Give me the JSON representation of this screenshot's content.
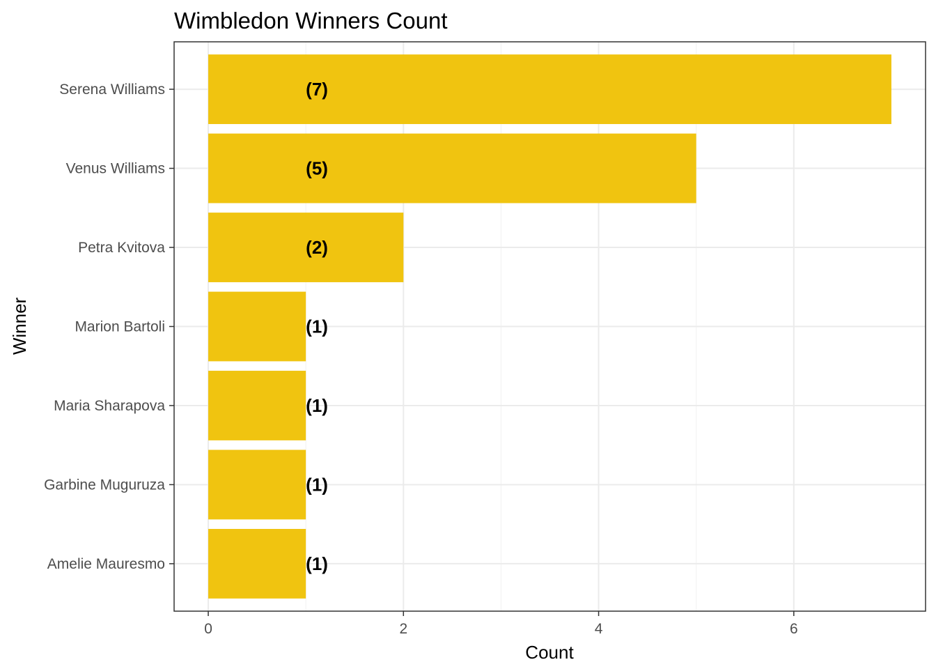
{
  "chart_data": {
    "type": "bar",
    "orientation": "horizontal",
    "title": "Wimbledon Winners Count",
    "xlabel": "Count",
    "ylabel": "Winner",
    "categories": [
      "Serena Williams",
      "Venus Williams",
      "Petra Kvitova",
      "Marion Bartoli",
      "Maria Sharapova",
      "Garbine Muguruza",
      "Amelie Mauresmo"
    ],
    "values": [
      7,
      5,
      2,
      1,
      1,
      1,
      1
    ],
    "data_labels": [
      "(7)",
      "(5)",
      "(2)",
      "(1)",
      "(1)",
      "(1)",
      "(1)"
    ],
    "x_ticks": [
      0,
      2,
      4,
      6
    ],
    "xlim": [
      -0.35,
      7.35
    ],
    "grid": true,
    "bar_color": "#F0C410"
  }
}
